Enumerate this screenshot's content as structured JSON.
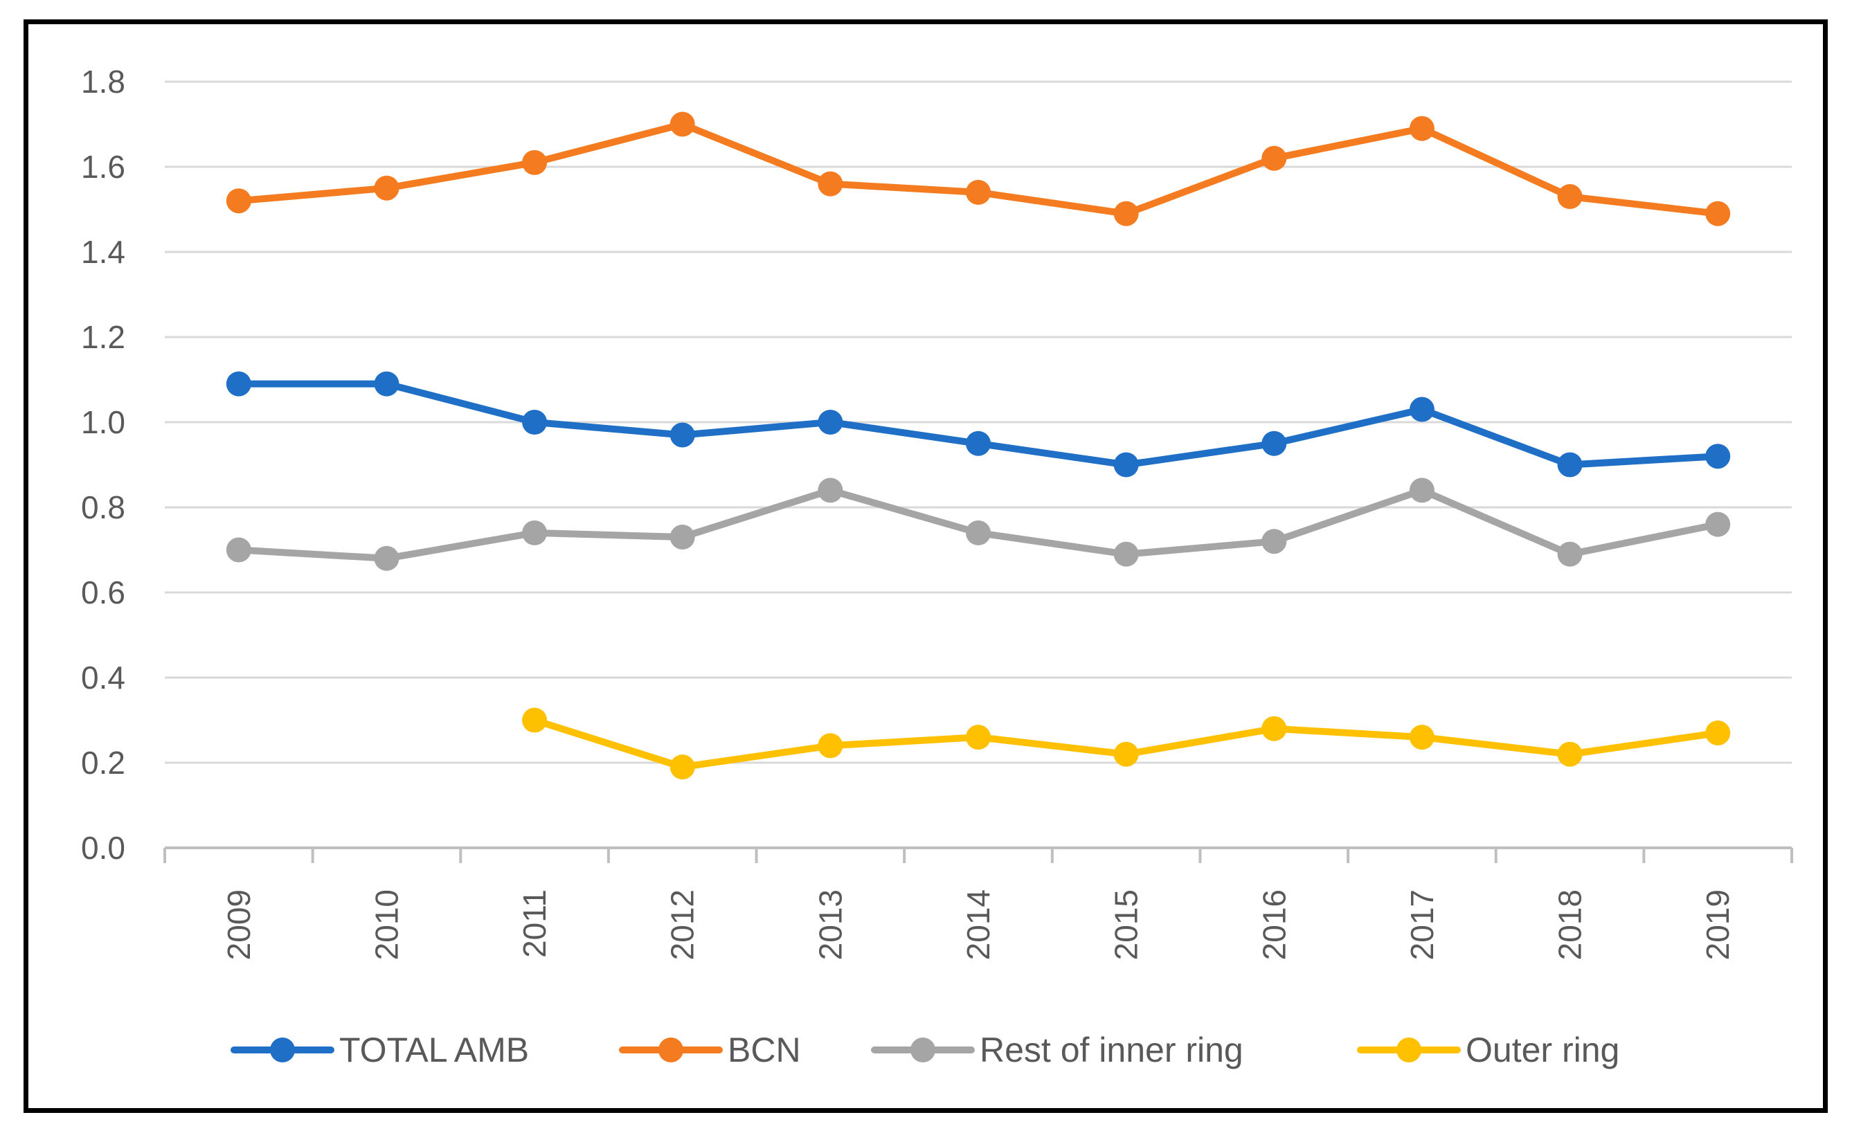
{
  "chart_data": {
    "type": "line",
    "title": "",
    "xlabel": "",
    "ylabel": "",
    "categories": [
      "2009",
      "2010",
      "2011",
      "2012",
      "2013",
      "2014",
      "2015",
      "2016",
      "2017",
      "2018",
      "2019"
    ],
    "ylim": [
      0.0,
      1.8
    ],
    "yticks": [
      "0.0",
      "0.2",
      "0.4",
      "0.6",
      "0.8",
      "1.0",
      "1.2",
      "1.4",
      "1.6",
      "1.8"
    ],
    "grid": true,
    "legend_position": "bottom",
    "series": [
      {
        "name": "TOTAL AMB",
        "color": "#1f6fc6",
        "values": [
          1.09,
          1.09,
          1.0,
          0.97,
          1.0,
          0.95,
          0.9,
          0.95,
          1.03,
          0.9,
          0.92
        ]
      },
      {
        "name": "BCN",
        "color": "#f47b20",
        "values": [
          1.52,
          1.55,
          1.61,
          1.7,
          1.56,
          1.54,
          1.49,
          1.62,
          1.69,
          1.53,
          1.49
        ]
      },
      {
        "name": "Rest of inner ring",
        "color": "#a5a5a5",
        "values": [
          0.7,
          0.68,
          0.74,
          0.73,
          0.84,
          0.74,
          0.69,
          0.72,
          0.84,
          0.69,
          0.76
        ]
      },
      {
        "name": "Outer ring",
        "color": "#ffc000",
        "values": [
          null,
          null,
          0.3,
          0.19,
          0.24,
          0.26,
          0.22,
          0.28,
          0.26,
          0.22,
          0.27
        ]
      }
    ]
  }
}
